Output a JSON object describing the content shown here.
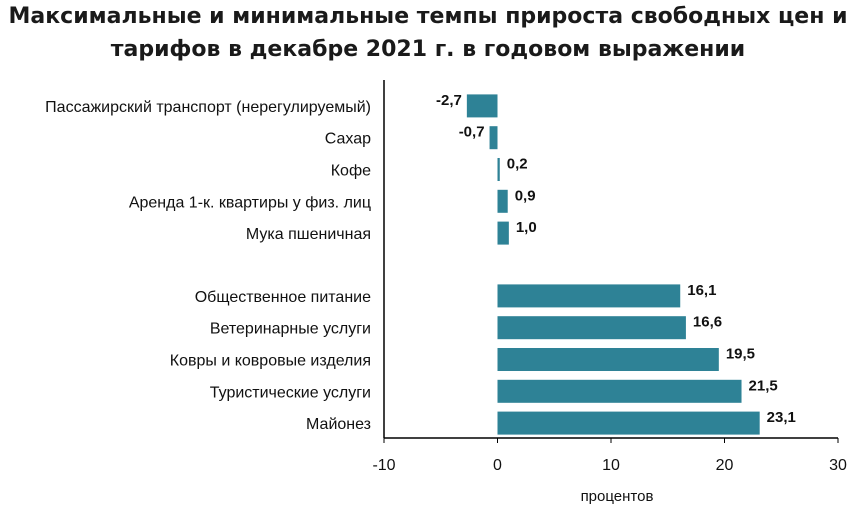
{
  "chart_data": {
    "type": "bar",
    "orientation": "horizontal",
    "title": "Максимальные и минимальные темпы прироста свободных цен и тарифов в декабре 2021 г. в годовом выражении",
    "xlabel": "процентов",
    "ylabel": "",
    "xlim": [
      -10,
      30
    ],
    "xticks": [
      -10,
      0,
      10,
      20,
      30
    ],
    "grid": false,
    "legend": "none",
    "bar_color": "#2e8296",
    "groups": [
      {
        "categories": [
          "Пассажирский транспорт (нерегулируемый)",
          "Сахар",
          "Кофе",
          "Аренда 1-к. квартиры у физ. лиц",
          "Мука пшеничная"
        ],
        "values": [
          -2.7,
          -0.7,
          0.2,
          0.9,
          1.0
        ],
        "value_labels": [
          "-2,7",
          "-0,7",
          "0,2",
          "0,9",
          "1,0"
        ]
      },
      {
        "categories": [
          "Общественное питание",
          "Ветеринарные услуги",
          "Ковры и ковровые изделия",
          "Туристические услуги",
          "Майонез"
        ],
        "values": [
          16.1,
          16.6,
          19.5,
          21.5,
          23.1
        ],
        "value_labels": [
          "16,1",
          "16,6",
          "19,5",
          "21,5",
          "23,1"
        ]
      }
    ]
  }
}
